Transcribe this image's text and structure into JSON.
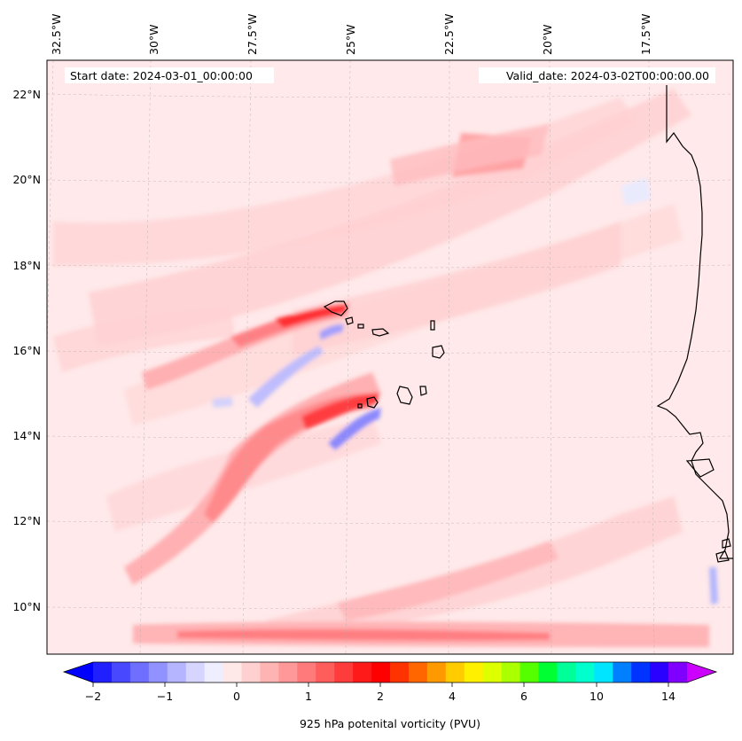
{
  "header": {
    "start_date": "Start date: 2024-03-01_00:00:00",
    "valid_date": "Valid_date: 2024-03-02T00:00:00.00"
  },
  "map": {
    "lon_labels": [
      "32.5°W",
      "30°W",
      "27.5°W",
      "25°W",
      "22.5°W",
      "20°W",
      "17.5°W"
    ],
    "lat_labels": [
      "22°N",
      "20°N",
      "18°N",
      "16°N",
      "14°N",
      "12°N",
      "10°N"
    ],
    "background_color": "#ffe9ea"
  },
  "colorbar": {
    "label": "925 hPa potenital vorticity (PVU)",
    "ticks": [
      "−2",
      "−1",
      "0",
      "1",
      "2",
      "4",
      "6",
      "10",
      "14"
    ],
    "colors": [
      "#2020ff",
      "#4848ff",
      "#6e6eff",
      "#9191ff",
      "#b4b4ff",
      "#d5d5ff",
      "#eeeeff",
      "#ffe8e8",
      "#ffd0d0",
      "#ffb4b4",
      "#ff9898",
      "#ff7a7a",
      "#ff5c5c",
      "#ff3c3c",
      "#ff1a1a",
      "#ff0000",
      "#ff3300",
      "#ff6600",
      "#ff9900",
      "#ffcc00",
      "#fff000",
      "#ddff00",
      "#aaff00",
      "#55ff00",
      "#00ff33",
      "#00ff99",
      "#00ffcc",
      "#00e5ff",
      "#0080ff",
      "#0033ff",
      "#2a00ff",
      "#8000ff"
    ],
    "min_color": "#0000ff",
    "max_color": "#cc00ff"
  }
}
